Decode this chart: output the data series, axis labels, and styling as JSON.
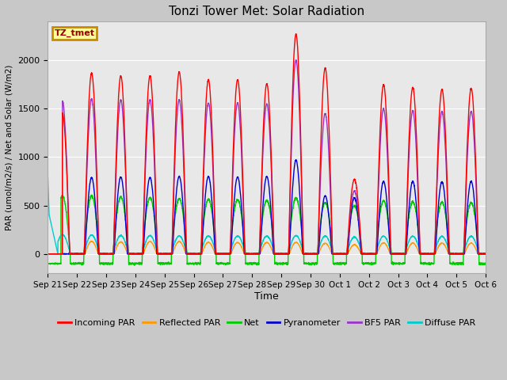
{
  "title": "Tonzi Tower Met: Solar Radiation",
  "ylabel": "PAR (umol/m2/s) / Net and Solar (W/m2)",
  "xlabel": "Time",
  "ylim": [
    -200,
    2400
  ],
  "fig_bg": "#c8c8c8",
  "plot_bg": "#e8e8e8",
  "annotation_text": "TZ_tmet",
  "annotation_bg": "#ffff99",
  "annotation_border": "#cc8800",
  "x_ticks": [
    "Sep 21",
    "Sep 22",
    "Sep 23",
    "Sep 24",
    "Sep 25",
    "Sep 26",
    "Sep 27",
    "Sep 28",
    "Sep 29",
    "Sep 30",
    "Oct 1",
    "Oct 2",
    "Oct 3",
    "Oct 4",
    "Oct 5",
    "Oct 6"
  ],
  "series": {
    "incoming_par": {
      "color": "#ff0000",
      "label": "Incoming PAR",
      "lw": 1.0
    },
    "reflected_par": {
      "color": "#ff9900",
      "label": "Reflected PAR",
      "lw": 1.0
    },
    "net": {
      "color": "#00cc00",
      "label": "Net",
      "lw": 1.0
    },
    "pyranometer": {
      "color": "#0000cc",
      "label": "Pyranometer",
      "lw": 1.0
    },
    "bf5_par": {
      "color": "#9933cc",
      "label": "BF5 PAR",
      "lw": 1.0
    },
    "diffuse_par": {
      "color": "#00cccc",
      "label": "Diffuse PAR",
      "lw": 1.0
    }
  },
  "incoming_peaks": [
    1450,
    1870,
    1840,
    1840,
    1880,
    1800,
    1800,
    1760,
    2270,
    1920,
    770,
    1750,
    1720,
    1700,
    1710
  ],
  "bf5_peaks": [
    1580,
    1600,
    1590,
    1590,
    1590,
    1560,
    1560,
    1550,
    2000,
    1450,
    650,
    1500,
    1480,
    1470,
    1470
  ],
  "pyran_peaks": [
    0,
    790,
    795,
    790,
    800,
    800,
    795,
    800,
    970,
    600,
    580,
    750,
    750,
    745,
    750
  ],
  "net_peaks": [
    600,
    600,
    590,
    580,
    570,
    565,
    560,
    555,
    580,
    530,
    500,
    550,
    540,
    535,
    530
  ],
  "refl_peaks": [
    0,
    130,
    125,
    128,
    128,
    120,
    118,
    118,
    120,
    110,
    95,
    115,
    112,
    112,
    112
  ],
  "diffuse_peaks": [
    200,
    195,
    190,
    190,
    185,
    185,
    185,
    185,
    190,
    185,
    175,
    185,
    183,
    182,
    182
  ],
  "n_days": 15,
  "pts_per_day": 288
}
